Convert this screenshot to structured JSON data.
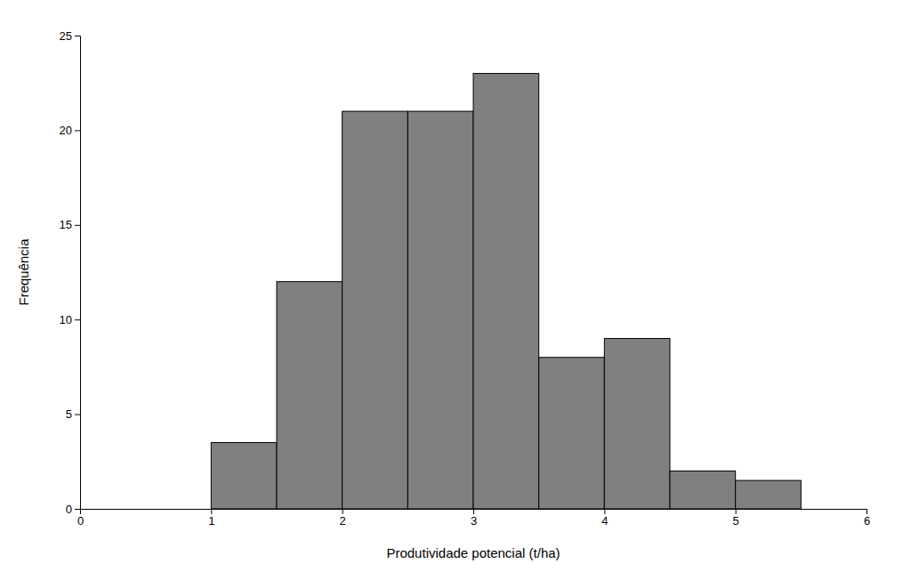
{
  "chart_data": {
    "type": "histogram",
    "bins": [
      1.0,
      1.5,
      2.0,
      2.5,
      3.0,
      3.5,
      4.0,
      4.5,
      5.0,
      5.5
    ],
    "values": [
      3.5,
      12,
      21,
      21,
      23,
      8,
      9,
      2,
      1.5
    ],
    "color": "#808080",
    "x_label": "Produtividade potencial (t/ha)",
    "y_label": "Frequência",
    "xlim": [
      0,
      6
    ],
    "ylim": [
      0,
      25
    ],
    "xticks": [
      0,
      1,
      2,
      3,
      4,
      5,
      6
    ],
    "yticks": [
      0,
      5,
      10,
      15,
      20,
      25
    ],
    "grid": false
  }
}
